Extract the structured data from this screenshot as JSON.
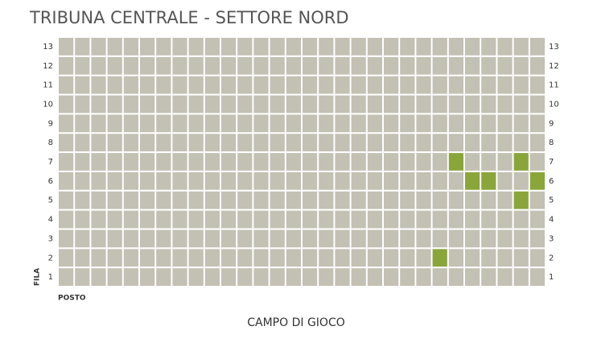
{
  "header": {
    "title": "TRIBUNA CENTRALE - SETTORE NORD"
  },
  "seat_map": {
    "row_axis_label": "FILA",
    "seat_axis_label": "POSTO",
    "field_label": "CAMPO DI GIOCO",
    "seat_color": "#c3c0b4",
    "selected_color": "#8aa53a",
    "rows": [
      {
        "label": 13,
        "seats": [
          0,
          0,
          0,
          0,
          0,
          0,
          0,
          0,
          0,
          0,
          0,
          0,
          0,
          0,
          0,
          0,
          0,
          0,
          0,
          0,
          0,
          0,
          0,
          0,
          0,
          0,
          0,
          0,
          0,
          0
        ]
      },
      {
        "label": 12,
        "seats": [
          0,
          0,
          0,
          0,
          0,
          0,
          0,
          0,
          0,
          0,
          0,
          0,
          0,
          0,
          0,
          0,
          0,
          0,
          0,
          0,
          0,
          0,
          0,
          0,
          0,
          0,
          0,
          0,
          0,
          0
        ]
      },
      {
        "label": 11,
        "seats": [
          0,
          0,
          0,
          0,
          0,
          0,
          0,
          0,
          0,
          0,
          0,
          0,
          0,
          0,
          0,
          0,
          0,
          0,
          0,
          0,
          0,
          0,
          0,
          0,
          0,
          0,
          0,
          0,
          0,
          0
        ]
      },
      {
        "label": 10,
        "seats": [
          0,
          0,
          0,
          0,
          0,
          0,
          0,
          0,
          0,
          0,
          0,
          0,
          0,
          0,
          0,
          0,
          0,
          0,
          0,
          0,
          0,
          0,
          0,
          0,
          0,
          0,
          0,
          0,
          0,
          0
        ]
      },
      {
        "label": 9,
        "seats": [
          0,
          0,
          0,
          0,
          0,
          0,
          0,
          0,
          0,
          0,
          0,
          0,
          0,
          0,
          0,
          0,
          0,
          0,
          0,
          0,
          0,
          0,
          0,
          0,
          0,
          0,
          0,
          0,
          0,
          0
        ]
      },
      {
        "label": 8,
        "seats": [
          0,
          0,
          0,
          0,
          0,
          0,
          0,
          0,
          0,
          0,
          0,
          0,
          0,
          0,
          0,
          0,
          0,
          0,
          0,
          0,
          0,
          0,
          0,
          0,
          0,
          0,
          0,
          0,
          0,
          0
        ]
      },
      {
        "label": 7,
        "seats": [
          0,
          0,
          0,
          0,
          0,
          0,
          0,
          0,
          0,
          0,
          0,
          0,
          0,
          0,
          0,
          0,
          0,
          0,
          0,
          0,
          0,
          0,
          0,
          0,
          1,
          0,
          0,
          0,
          1,
          0
        ]
      },
      {
        "label": 6,
        "seats": [
          0,
          0,
          0,
          0,
          0,
          0,
          0,
          0,
          0,
          0,
          0,
          0,
          0,
          0,
          0,
          0,
          0,
          0,
          0,
          0,
          0,
          0,
          0,
          0,
          0,
          1,
          1,
          0,
          0,
          1
        ]
      },
      {
        "label": 5,
        "seats": [
          0,
          0,
          0,
          0,
          0,
          0,
          0,
          0,
          0,
          0,
          0,
          0,
          0,
          0,
          0,
          0,
          0,
          0,
          0,
          0,
          0,
          0,
          0,
          0,
          0,
          0,
          0,
          0,
          1,
          0
        ]
      },
      {
        "label": 4,
        "seats": [
          0,
          0,
          0,
          0,
          0,
          0,
          0,
          0,
          0,
          0,
          0,
          0,
          0,
          0,
          0,
          0,
          0,
          0,
          0,
          0,
          0,
          0,
          0,
          0,
          0,
          0,
          0,
          0,
          0,
          0
        ]
      },
      {
        "label": 3,
        "seats": [
          0,
          0,
          0,
          0,
          0,
          0,
          0,
          0,
          0,
          0,
          0,
          0,
          0,
          0,
          0,
          0,
          0,
          0,
          0,
          0,
          0,
          0,
          0,
          0,
          0,
          0,
          0,
          0,
          0,
          0
        ]
      },
      {
        "label": 2,
        "seats": [
          0,
          0,
          0,
          0,
          0,
          0,
          0,
          0,
          0,
          0,
          0,
          0,
          0,
          0,
          0,
          0,
          0,
          0,
          0,
          0,
          0,
          0,
          0,
          1,
          0,
          0,
          0,
          0,
          0,
          0
        ]
      },
      {
        "label": 1,
        "seats": [
          0,
          0,
          0,
          0,
          0,
          0,
          0,
          0,
          0,
          0,
          0,
          0,
          0,
          0,
          0,
          0,
          0,
          0,
          0,
          0,
          0,
          0,
          0,
          0,
          0,
          0,
          0,
          0,
          0,
          0
        ]
      }
    ]
  }
}
